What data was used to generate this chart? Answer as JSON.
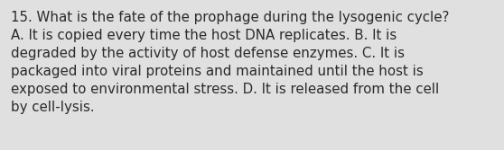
{
  "background_color": "#e0e0e0",
  "text_color": "#2a2a2a",
  "font_size": 10.8,
  "font_family": "DejaVu Sans",
  "line1": "15. What is the fate of the prophage during the lysogenic cycle?",
  "line2": "A. It is copied every time the host DNA replicates. B. It is",
  "line3": "degraded by the activity of host defense enzymes. C. It is",
  "line4": "packaged into viral proteins and maintained until the host is",
  "line5": "exposed to environmental stress. D. It is released from the cell",
  "line6": "by cell-lysis.",
  "fig_width": 5.58,
  "fig_height": 1.67,
  "dpi": 100
}
